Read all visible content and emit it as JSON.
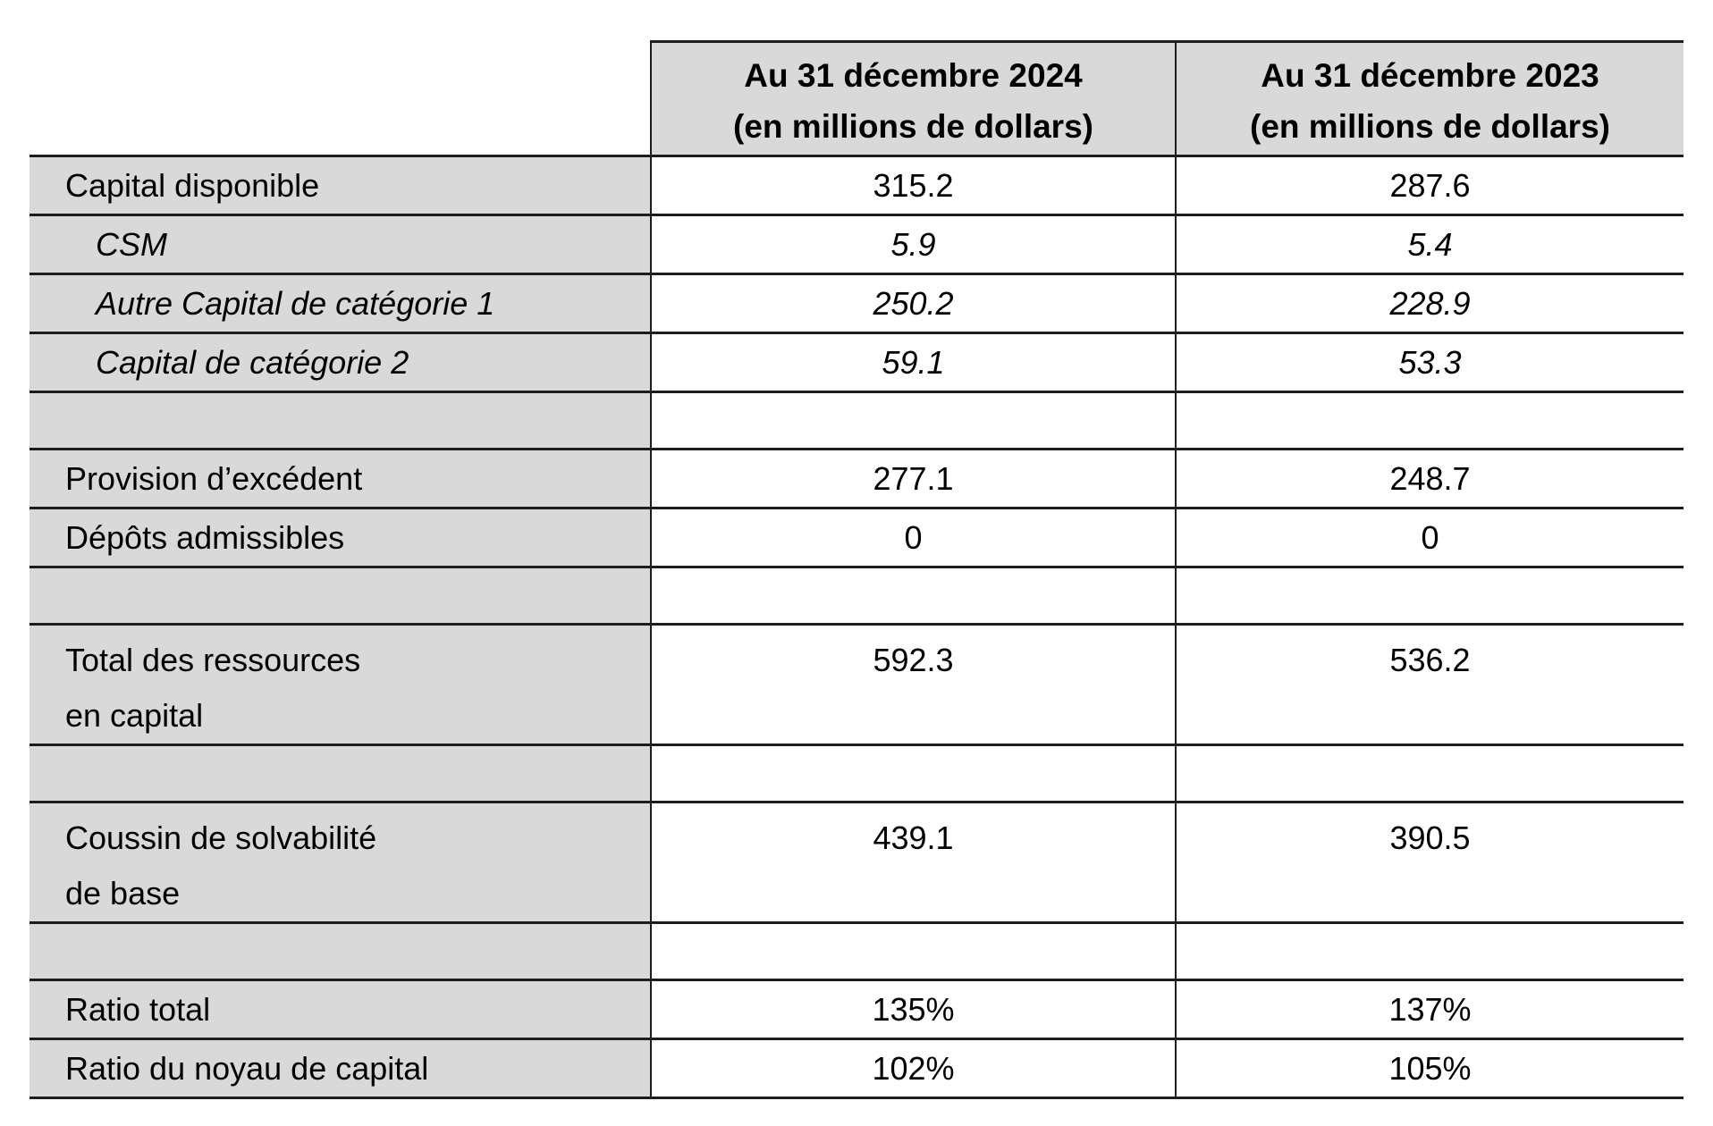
{
  "table": {
    "header": {
      "corner": "",
      "cols": [
        {
          "id": "2024",
          "lines": [
            "Au 31 décembre 2024",
            "(en millions de dollars)"
          ]
        },
        {
          "id": "2023",
          "lines": [
            "Au 31 décembre 2023",
            "(en millions de dollars)"
          ]
        }
      ]
    },
    "rows": [
      {
        "kind": "item",
        "label_lines": [
          "Capital disponible"
        ],
        "v2024": "315.2",
        "v2023": "287.6"
      },
      {
        "kind": "sub",
        "label_lines": [
          "CSM"
        ],
        "v2024": "5.9",
        "v2023": "5.4"
      },
      {
        "kind": "sub",
        "label_lines": [
          "Autre Capital de catégorie 1"
        ],
        "v2024": "250.2",
        "v2023": "228.9"
      },
      {
        "kind": "sub",
        "label_lines": [
          "Capital de catégorie 2"
        ],
        "v2024": "59.1",
        "v2023": "53.3"
      },
      {
        "kind": "spacer",
        "label_lines": [],
        "v2024": "",
        "v2023": ""
      },
      {
        "kind": "item",
        "label_lines": [
          "Provision d’excédent"
        ],
        "v2024": "277.1",
        "v2023": "248.7"
      },
      {
        "kind": "item",
        "label_lines": [
          "Dépôts admissibles"
        ],
        "v2024": "0",
        "v2023": "0"
      },
      {
        "kind": "spacer",
        "label_lines": [],
        "v2024": "",
        "v2023": ""
      },
      {
        "kind": "tall",
        "label_lines": [
          "Total des ressources",
          "en capital"
        ],
        "v2024": "592.3",
        "v2023": "536.2"
      },
      {
        "kind": "spacer",
        "label_lines": [],
        "v2024": "",
        "v2023": ""
      },
      {
        "kind": "tall",
        "label_lines": [
          "Coussin de solvabilité",
          "de base"
        ],
        "v2024": "439.1",
        "v2023": "390.5"
      },
      {
        "kind": "spacer",
        "label_lines": [],
        "v2024": "",
        "v2023": ""
      },
      {
        "kind": "item",
        "label_lines": [
          "Ratio total"
        ],
        "v2024": "135%",
        "v2023": "137%"
      },
      {
        "kind": "item",
        "label_lines": [
          "Ratio du noyau de capital"
        ],
        "v2024": "102%",
        "v2023": "105%"
      }
    ],
    "colors": {
      "shaded_cell": "#d9d9d9",
      "data_cell": "#ffffff",
      "border": "#1d1d1d",
      "text": "#000000"
    }
  }
}
